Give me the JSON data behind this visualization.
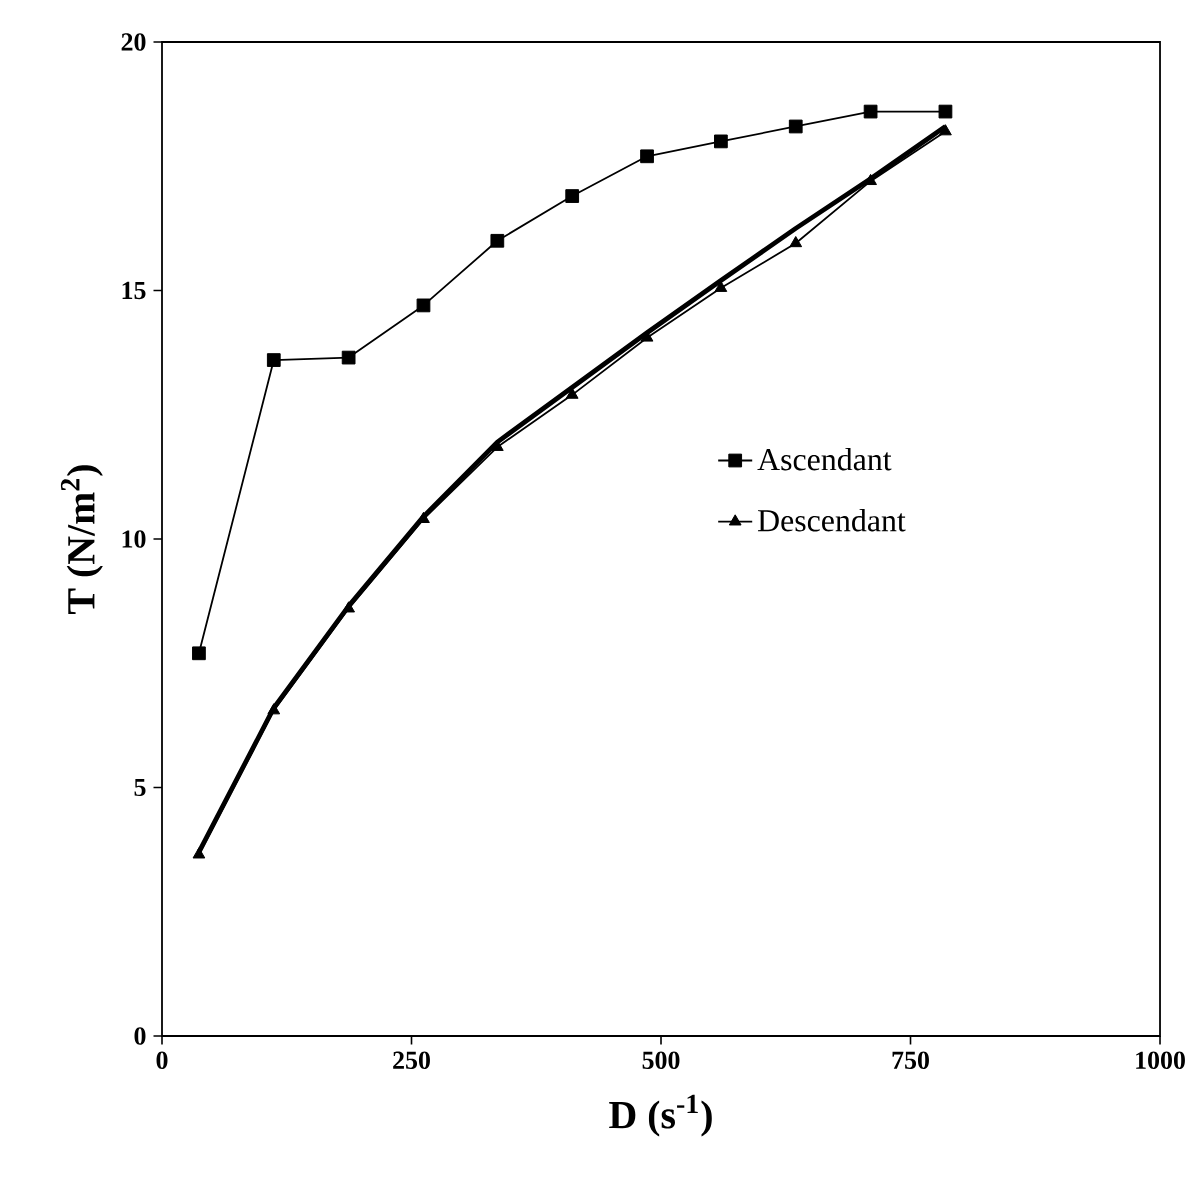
{
  "chart_data": {
    "type": "line",
    "xlabel": "D (s$^{-1}$)",
    "ylabel": "T (N/m$^{2}$)",
    "xlim": [
      0,
      1000
    ],
    "ylim": [
      0,
      20
    ],
    "xticks": [
      0,
      250,
      500,
      750,
      1000
    ],
    "yticks": [
      0,
      5,
      10,
      15,
      20
    ],
    "grid": false,
    "legend": "right",
    "series": [
      {
        "name": "Ascendant",
        "color": "#000000",
        "marker": "square",
        "x": [
          37,
          112,
          187,
          262,
          336,
          411,
          486,
          560,
          635,
          710,
          785
        ],
        "values": [
          7.7,
          13.6,
          13.65,
          14.7,
          16.0,
          16.9,
          17.7,
          18.0,
          18.3,
          18.6,
          18.6
        ]
      },
      {
        "name": "Descendant",
        "color": "#000000",
        "marker": "triangle",
        "x": [
          37,
          112,
          187,
          262,
          336,
          411,
          486,
          560,
          635,
          710,
          785
        ],
        "values": [
          3.65,
          6.55,
          8.6,
          10.4,
          11.85,
          12.9,
          14.05,
          15.05,
          15.95,
          17.2,
          18.2
        ]
      },
      {
        "color": "#000000",
        "marker": "none",
        "x": [
          37,
          112,
          187,
          262,
          336,
          411,
          486,
          560,
          635,
          710,
          785
        ],
        "values": [
          3.7,
          6.6,
          8.65,
          10.45,
          11.95,
          13.05,
          14.15,
          15.2,
          16.25,
          17.25,
          18.3
        ]
      }
    ]
  }
}
